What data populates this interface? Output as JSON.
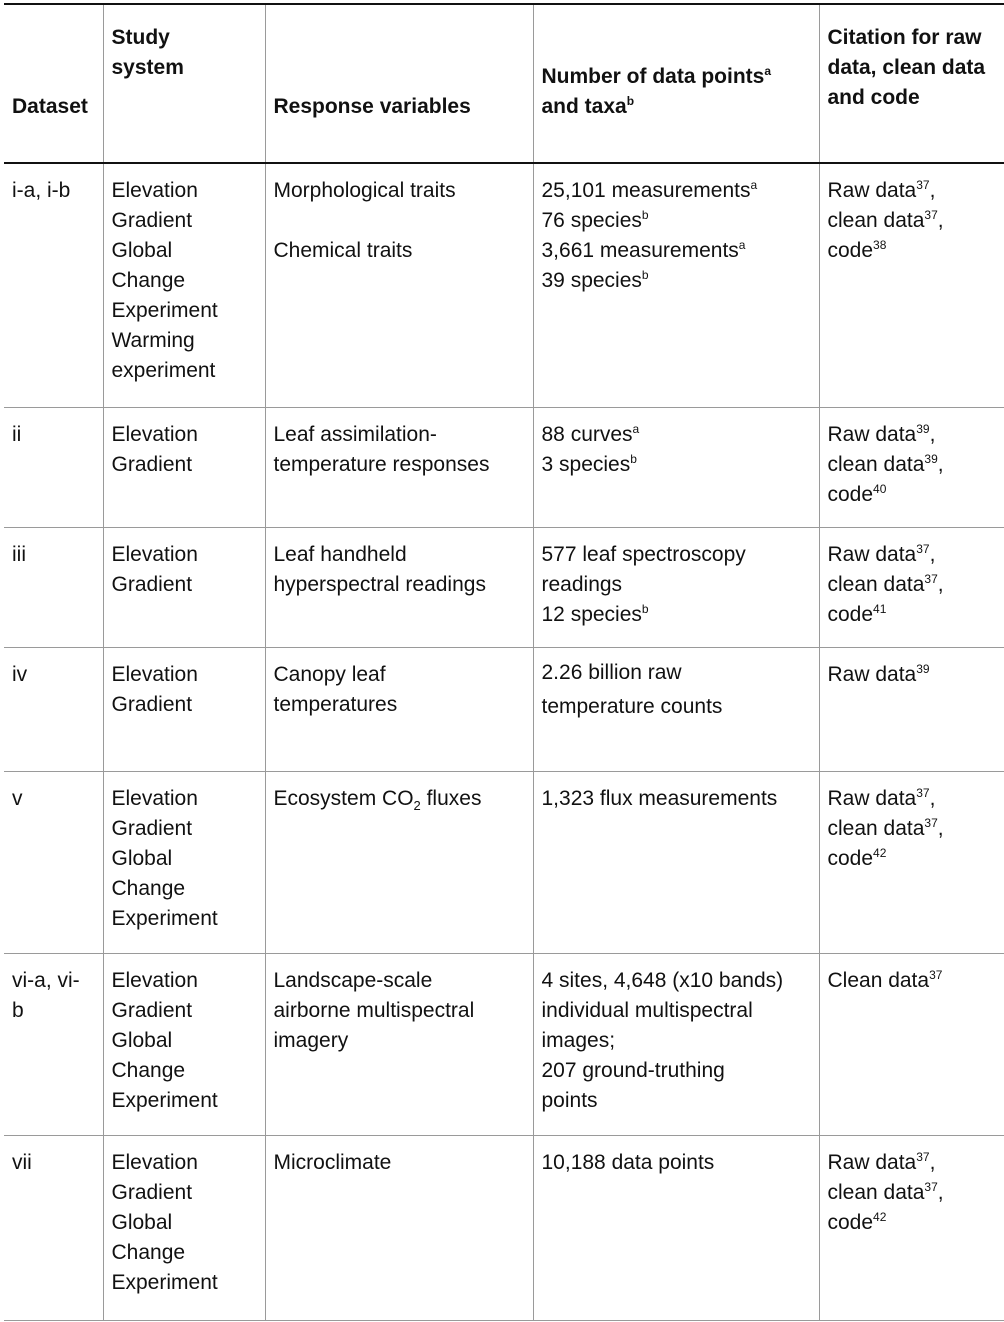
{
  "headers": {
    "dataset": "Dataset",
    "study_system_1": "Study",
    "study_system_2": "system",
    "response": "Response variables",
    "points_1": "Number of data points",
    "points_1_sup": "a",
    "points_2": "and taxa",
    "points_2_sup": "b",
    "citation_1": "Citation for raw",
    "citation_2": "data, clean data",
    "citation_3": "and code"
  },
  "rows": [
    {
      "dataset": "i-a, i-b",
      "system": [
        "Elevation",
        "Gradient",
        "Global",
        "Change",
        "Experiment",
        "Warming",
        "experiment"
      ],
      "response_1": "Morphological traits",
      "response_2": "Chemical traits",
      "points": [
        {
          "text": "25,101 measurements",
          "sup": "a"
        },
        {
          "text": "76 species",
          "sup": "b"
        },
        {
          "text": "3,661 measurements",
          "sup": "a"
        },
        {
          "text": "39 species",
          "sup": "b"
        }
      ],
      "citation": [
        {
          "text": "Raw data",
          "sup": "37",
          "tail": ","
        },
        {
          "text": "clean data",
          "sup": "37",
          "tail": ","
        },
        {
          "text": "code",
          "sup": "38",
          "tail": ""
        }
      ]
    },
    {
      "dataset": "ii",
      "system": [
        "Elevation",
        "Gradient"
      ],
      "response": [
        "Leaf assimilation-",
        "temperature responses"
      ],
      "points": [
        {
          "text": "88 curves",
          "sup": "a"
        },
        {
          "text": "3 species",
          "sup": "b"
        }
      ],
      "citation": [
        {
          "text": "Raw data",
          "sup": "39",
          "tail": ","
        },
        {
          "text": "clean data",
          "sup": "39",
          "tail": ","
        },
        {
          "text": "code",
          "sup": "40",
          "tail": ""
        }
      ]
    },
    {
      "dataset": "iii",
      "system": [
        "Elevation",
        "Gradient"
      ],
      "response": [
        "Leaf handheld",
        "hyperspectral readings"
      ],
      "points": [
        {
          "text": "577 leaf spectroscopy",
          "sup": ""
        },
        {
          "text": "readings",
          "sup": ""
        },
        {
          "text": "12 species",
          "sup": "b"
        }
      ],
      "citation": [
        {
          "text": "Raw data",
          "sup": "37",
          "tail": ","
        },
        {
          "text": "clean data",
          "sup": "37",
          "tail": ","
        },
        {
          "text": "code",
          "sup": "41",
          "tail": ""
        }
      ]
    },
    {
      "dataset": "iv",
      "system": [
        "Elevation",
        "Gradient"
      ],
      "response": [
        "Canopy leaf",
        "temperatures"
      ],
      "points": [
        {
          "text": "2.26 billion raw",
          "sup": ""
        },
        {
          "text": "temperature counts",
          "sup": ""
        }
      ],
      "citation": [
        {
          "text": "Raw data",
          "sup": "39",
          "tail": ""
        }
      ]
    },
    {
      "dataset": "v",
      "system": [
        "Elevation",
        "Gradient",
        "Global",
        "Change",
        "Experiment"
      ],
      "response_pre": "Ecosystem CO",
      "response_sub": "2",
      "response_post": " fluxes",
      "points": [
        {
          "text": "1,323 flux measurements",
          "sup": ""
        }
      ],
      "citation": [
        {
          "text": "Raw data",
          "sup": "37",
          "tail": ","
        },
        {
          "text": "clean data",
          "sup": "37",
          "tail": ","
        },
        {
          "text": "code",
          "sup": "42",
          "tail": ""
        }
      ]
    },
    {
      "dataset_1": "vi-a, vi-",
      "dataset_2": "b",
      "system": [
        "Elevation",
        "Gradient",
        "Global",
        "Change",
        "Experiment"
      ],
      "response": [
        "Landscape-scale",
        "airborne multispectral",
        "imagery"
      ],
      "points": [
        {
          "text": "4 sites, 4,648 (x10 bands)",
          "sup": ""
        },
        {
          "text": "individual multispectral",
          "sup": ""
        },
        {
          "text": "images;",
          "sup": ""
        },
        {
          "text": "207 ground-truthing",
          "sup": ""
        },
        {
          "text": "points",
          "sup": ""
        }
      ],
      "citation": [
        {
          "text": "Clean data",
          "sup": "37",
          "tail": ""
        }
      ]
    },
    {
      "dataset": "vii",
      "system": [
        "Elevation",
        "Gradient",
        "Global",
        "Change",
        "Experiment"
      ],
      "response": [
        "Microclimate"
      ],
      "points": [
        {
          "text": "10,188 data points",
          "sup": ""
        }
      ],
      "citation": [
        {
          "text": "Raw data",
          "sup": "37",
          "tail": ","
        },
        {
          "text": "clean data",
          "sup": "37",
          "tail": ","
        },
        {
          "text": "code",
          "sup": "42",
          "tail": ""
        }
      ]
    }
  ]
}
